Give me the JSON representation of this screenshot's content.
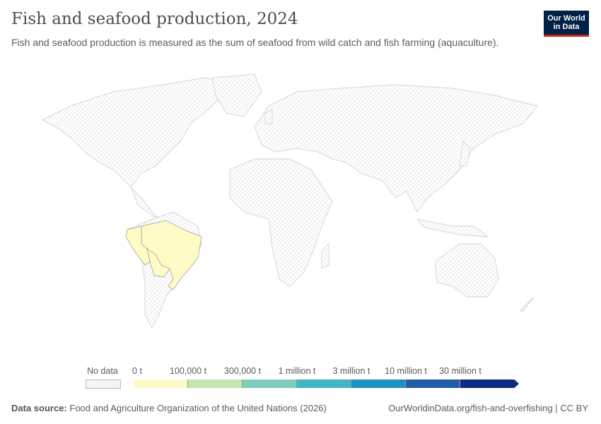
{
  "header": {
    "title": "Fish and seafood production, 2024",
    "subtitle": "Fish and seafood production is measured as the sum of seafood from wild catch and fish farming (aquaculture).",
    "logo_line1": "Our World",
    "logo_line2": "in Data"
  },
  "map": {
    "no_data_color": "#e8e8e8",
    "colored_countries": [
      {
        "country": "Brazil",
        "bin": 0,
        "color": "#fffbc7"
      },
      {
        "country": "Peru",
        "bin": 0,
        "color": "#fffbc7"
      },
      {
        "country": "Bolivia",
        "bin": 0,
        "color": "#fffbc7"
      }
    ]
  },
  "legend": {
    "no_data_label": "No data",
    "tick_labels": [
      "0 t",
      "100,000 t",
      "300,000 t",
      "1 million t",
      "3 million t",
      "10 million t",
      "30 million t"
    ],
    "bin_colors": [
      "#fffbc7",
      "#c6e6b1",
      "#7fccba",
      "#41b6c4",
      "#1d91c0",
      "#225ea8",
      "#0c2c84"
    ]
  },
  "footer": {
    "source_label": "Data source:",
    "source_text": "Food and Agriculture Organization of the United Nations (2026)",
    "url": "OurWorldinData.org/fish-and-overfishing | CC BY"
  }
}
